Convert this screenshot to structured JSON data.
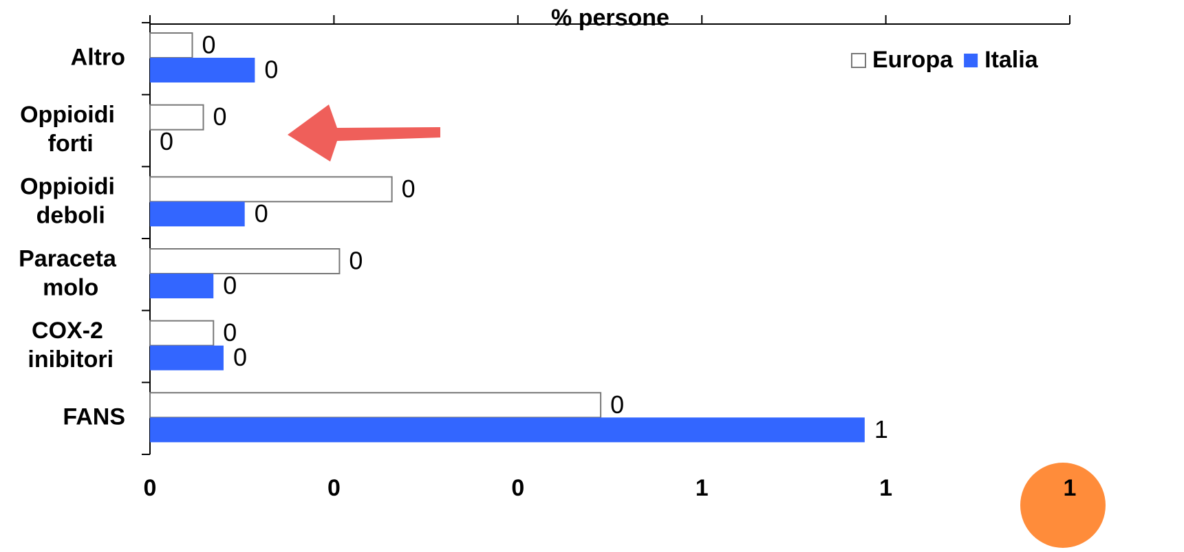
{
  "chart_data": {
    "type": "hbar",
    "x_label": "% persone",
    "categories": [
      "Altro",
      "Oppioidi forti",
      "Oppioidi deboli",
      "Paraceta molo",
      "COX-2 inibitori",
      "FANS"
    ],
    "series": [
      {
        "name": "Europa",
        "color": "#ffffff",
        "values": [
          0.046,
          0.058,
          0.263,
          0.206,
          0.069,
          0.49
        ],
        "value_labels": [
          "0",
          "0",
          "0",
          "0",
          "0",
          "0"
        ]
      },
      {
        "name": "Italia",
        "color": "#3366ff",
        "values": [
          0.114,
          0,
          0.103,
          0.069,
          0.08,
          0.777
        ],
        "value_labels": [
          "0",
          "0",
          "0",
          "0",
          "0",
          "1"
        ]
      }
    ],
    "xlim": [
      0,
      1
    ],
    "xticks": [
      0,
      {
        "value": 0.2,
        "label": "0"
      },
      {
        "value": 0.4,
        "label": "0"
      },
      {
        "value": 0.6,
        "label": "1"
      },
      {
        "value": 0.8,
        "label": "1"
      },
      1
    ],
    "legend": "top-right"
  }
}
